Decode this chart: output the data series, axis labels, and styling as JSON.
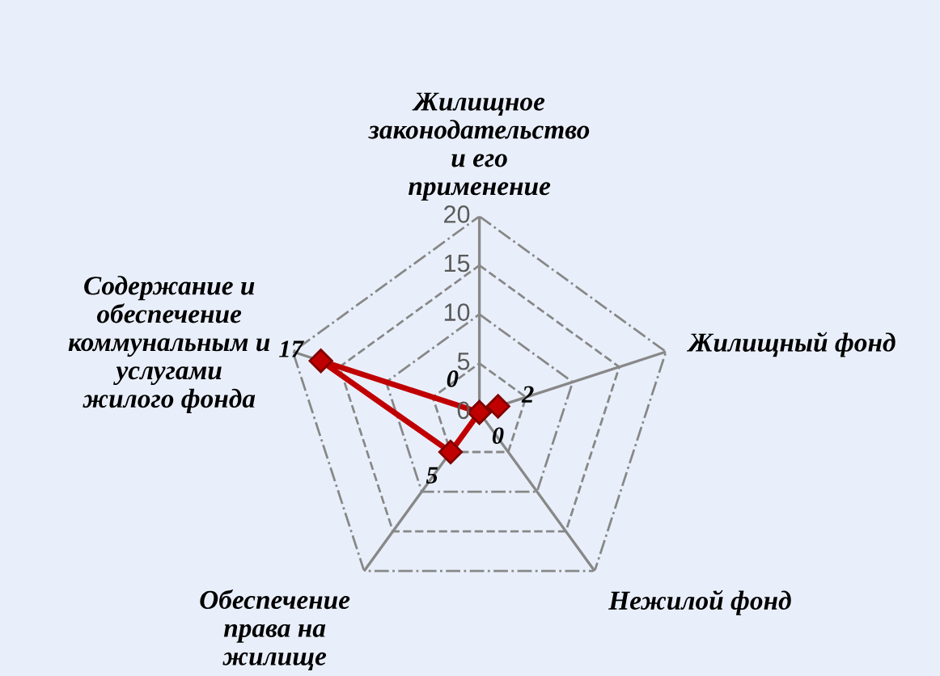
{
  "chart_data": {
    "type": "radar",
    "categories": [
      "Жилищное законодательство и его применение",
      "Жилищный фонд",
      "Нежилой фонд",
      "Обеспечение права на жилище",
      "Содержание и обеспечение коммунальным и услугами жилого фонда"
    ],
    "series": [
      {
        "color": "#c00000",
        "values": [
          0,
          2,
          0,
          5,
          17
        ]
      }
    ],
    "ylim": [
      0,
      20
    ],
    "yticks": [
      0,
      5,
      10,
      15,
      20
    ],
    "grid": true,
    "marker": "diamond",
    "line_style": "solid",
    "data_labels": true
  }
}
